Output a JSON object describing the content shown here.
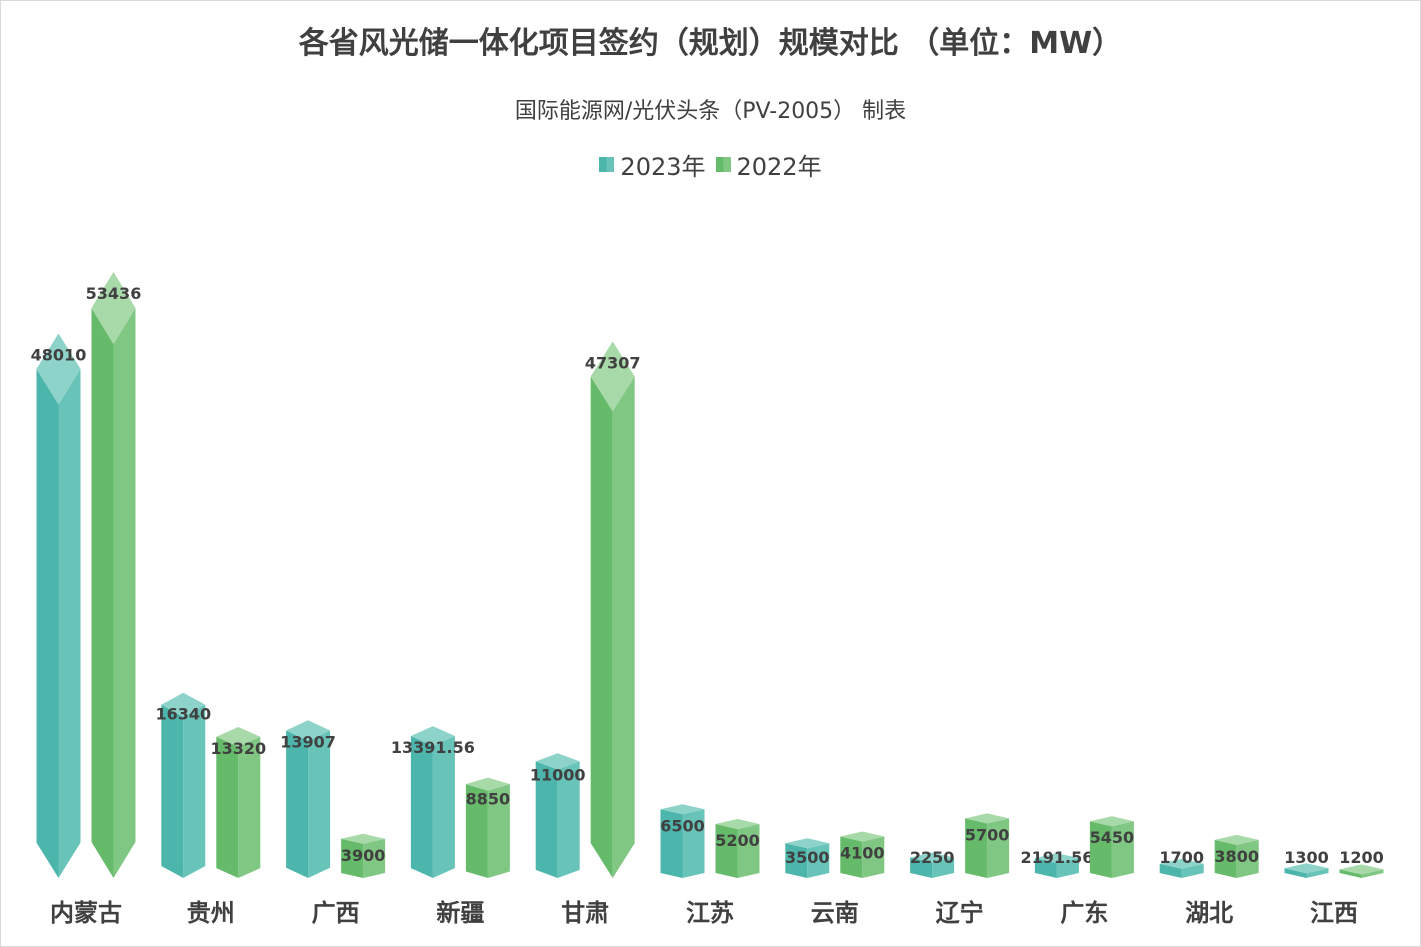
{
  "chart_data": {
    "type": "bar",
    "title": "各省风光储一体化项目签约（规划）规模对比 （单位：MW）",
    "subtitle": "国际能源网/光伏头条（PV-2005） 制表",
    "xlabel": "",
    "ylabel": "",
    "ylim": [
      0,
      53436
    ],
    "grid": false,
    "legend_position": "top-center",
    "categories": [
      "内蒙古",
      "贵州",
      "广西",
      "新疆",
      "甘肃",
      "江苏",
      "云南",
      "辽宁",
      "广东",
      "湖北",
      "江西"
    ],
    "series": [
      {
        "name": "2023年",
        "color": "#4db6ac",
        "values": [
          48010,
          16340,
          13907,
          13391.56,
          11000,
          6500,
          3500,
          2250,
          2191.56,
          1700,
          1300
        ]
      },
      {
        "name": "2022年",
        "color": "#66bb6a",
        "values": [
          53436,
          13320,
          3900,
          8850,
          47307,
          5200,
          4100,
          5700,
          5450,
          3800,
          1200
        ]
      }
    ]
  }
}
